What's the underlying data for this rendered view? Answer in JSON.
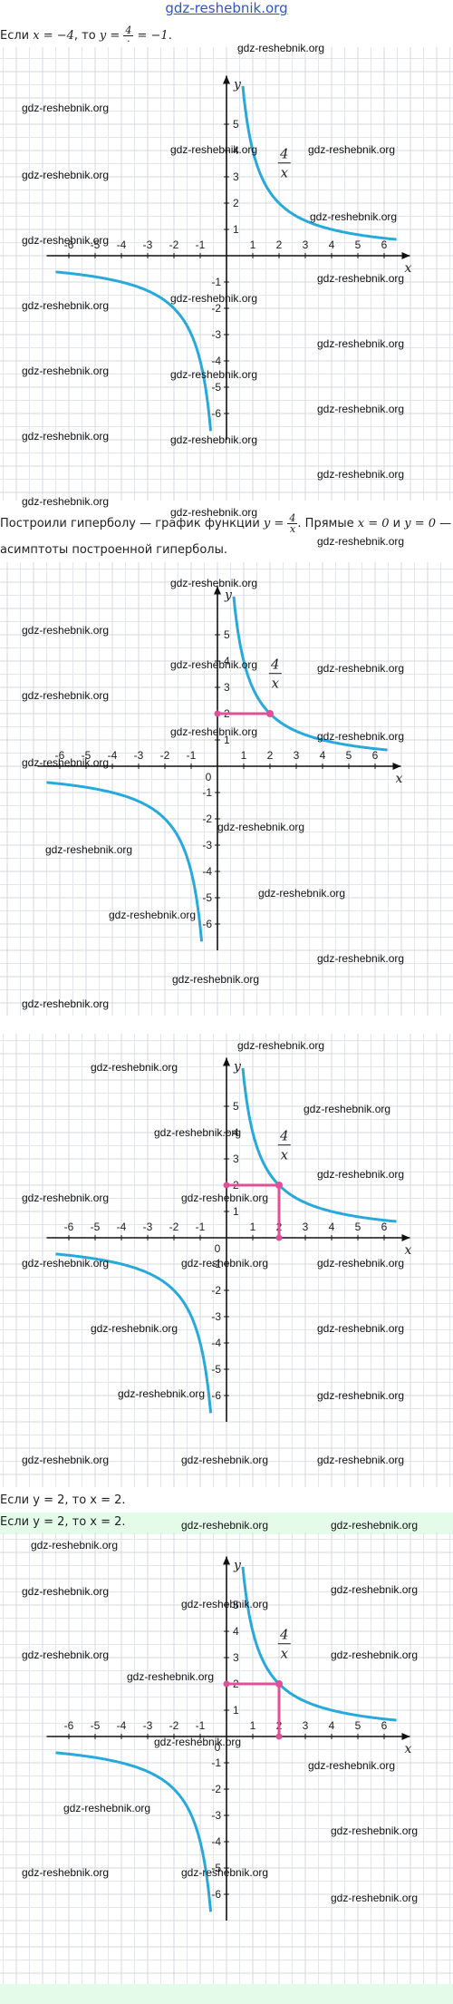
{
  "site_link": "gdz-reshebnik.org",
  "watermark": "gdz-reshebnik.org",
  "texts": {
    "line1_prefix": "Если ",
    "line1_eq1": "x = −4",
    "line1_mid": ", то ",
    "line1_eq2": "y = ",
    "line1_frac_num": "4",
    "line1_frac_den": "·",
    "line1_end": " = −1.",
    "line2_prefix": "Построили гиперболу — график функции ",
    "line2_eq": "y = ",
    "line2_frac_num": "4",
    "line2_frac_den": "x",
    "line2_mid": ". Прямые ",
    "line2_eq2": "x = 0",
    "line2_and": " и ",
    "line2_eq3": "y = 0",
    "line2_end": " —",
    "line3": "асимптоты построенной гиперболы.",
    "line4": "Если y = 2, то x = 2.",
    "line5": "Если y = 2, то x = 2."
  },
  "chart_data": [
    {
      "type": "line",
      "title": "",
      "function": "y = 4/x",
      "label_num": "4",
      "label_den": "x",
      "xlabel": "x",
      "ylabel": "y",
      "xlim": [
        -6.5,
        6.5
      ],
      "ylim": [
        -7,
        6.5
      ],
      "x_ticks": [
        -6,
        -5,
        -4,
        -3,
        -2,
        -1,
        1,
        2,
        3,
        4,
        5,
        6
      ],
      "y_ticks": [
        -6,
        -5,
        -4,
        -3,
        -2,
        -1,
        1,
        2,
        3,
        4,
        5
      ],
      "origin_label": "",
      "highlight": null,
      "curve_color": "#27a9dc",
      "highlight_color": "#e0509a"
    },
    {
      "type": "line",
      "title": "",
      "function": "y = 4/x",
      "label_num": "4",
      "label_den": "x",
      "xlabel": "x",
      "ylabel": "y",
      "xlim": [
        -6.5,
        6.5
      ],
      "ylim": [
        -7,
        6.5
      ],
      "x_ticks": [
        -6,
        -5,
        -4,
        -3,
        -2,
        -1,
        1,
        2,
        3,
        4,
        5,
        6
      ],
      "y_ticks": [
        -6,
        -5,
        -4,
        -3,
        -2,
        -1,
        1,
        2,
        3,
        4,
        5
      ],
      "origin_label": "0",
      "highlight": {
        "x": 2,
        "y": 2,
        "mode": "horizontal"
      },
      "curve_color": "#27a9dc",
      "highlight_color": "#e0509a"
    },
    {
      "type": "line",
      "title": "",
      "function": "y = 4/x",
      "label_num": "4",
      "label_den": "x",
      "xlabel": "x",
      "ylabel": "y",
      "xlim": [
        -6.5,
        6.5
      ],
      "ylim": [
        -7,
        6.5
      ],
      "x_ticks": [
        -6,
        -5,
        -4,
        -3,
        -2,
        -1,
        1,
        2,
        3,
        4,
        5,
        6
      ],
      "y_ticks": [
        -6,
        -5,
        -4,
        -3,
        -2,
        -1,
        1,
        2,
        3,
        4,
        5
      ],
      "origin_label": "0",
      "highlight": {
        "x": 2,
        "y": 2,
        "mode": "both"
      },
      "curve_color": "#27a9dc",
      "highlight_color": "#e0509a"
    },
    {
      "type": "line",
      "title": "",
      "function": "y = 4/x",
      "label_num": "4",
      "label_den": "x",
      "xlabel": "x",
      "ylabel": "y",
      "xlim": [
        -6.5,
        6.5
      ],
      "ylim": [
        -7,
        6.5
      ],
      "x_ticks": [
        -6,
        -5,
        -4,
        -3,
        -2,
        -1,
        1,
        2,
        3,
        4,
        5,
        6
      ],
      "y_ticks": [
        -6,
        -5,
        -4,
        -3,
        -2,
        -1,
        1,
        2,
        3,
        4,
        5
      ],
      "origin_label": "0",
      "highlight": {
        "x": 2,
        "y": 2,
        "mode": "both"
      },
      "curve_color": "#27a9dc",
      "highlight_color": "#e0509a"
    }
  ]
}
